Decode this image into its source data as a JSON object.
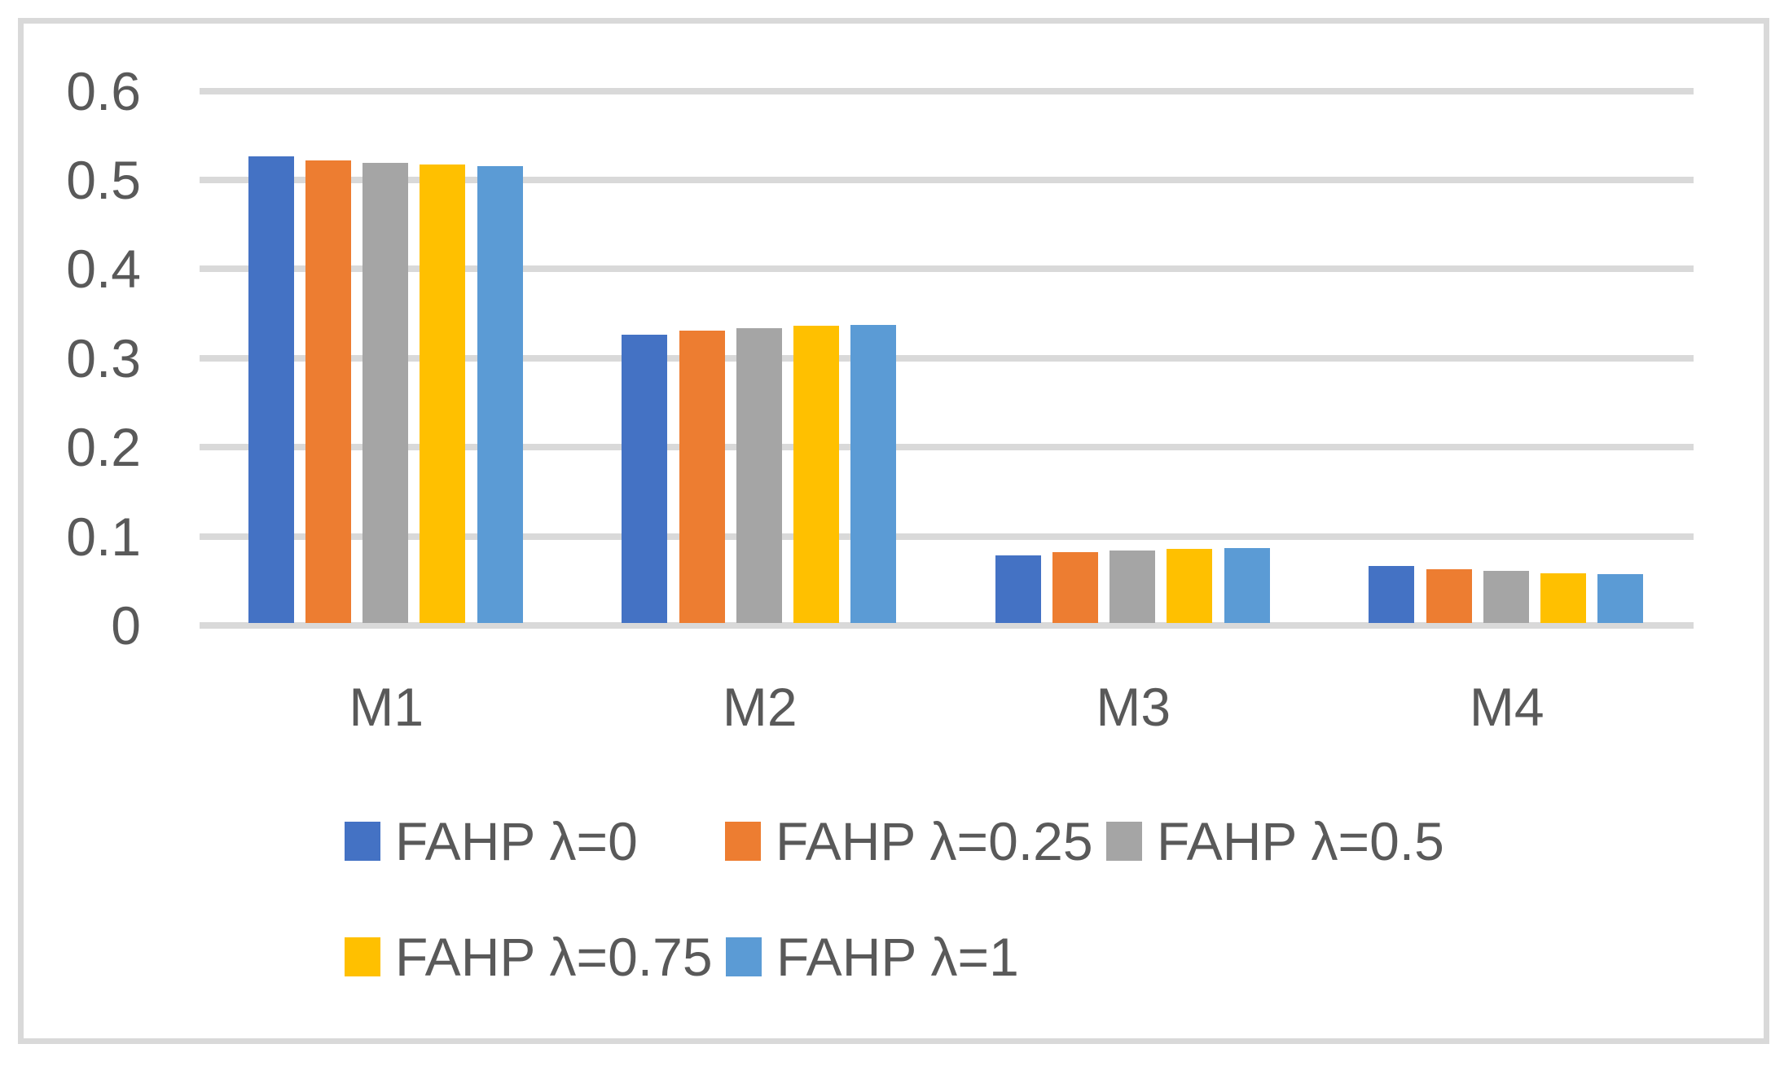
{
  "chart_data": {
    "type": "bar",
    "title": "",
    "categories": [
      "M1",
      "M2",
      "M3",
      "M4"
    ],
    "series": [
      {
        "name": "FAHP λ=0",
        "color": "#4472C4",
        "values": [
          0.527,
          0.326,
          0.079,
          0.067
        ]
      },
      {
        "name": "FAHP λ=0.25",
        "color": "#ED7D31",
        "values": [
          0.522,
          0.331,
          0.082,
          0.063
        ]
      },
      {
        "name": "FAHP λ=0.5",
        "color": "#A5A5A5",
        "values": [
          0.519,
          0.334,
          0.084,
          0.061
        ]
      },
      {
        "name": "FAHP λ=0.75",
        "color": "#FFC000",
        "values": [
          0.517,
          0.336,
          0.086,
          0.059
        ]
      },
      {
        "name": "FAHP λ=1",
        "color": "#5B9BD5",
        "values": [
          0.516,
          0.337,
          0.087,
          0.058
        ]
      }
    ],
    "xlabel": "",
    "ylabel": "",
    "ylim": [
      0,
      0.6
    ],
    "ytick_labels": [
      "0",
      "0.1",
      "0.2",
      "0.3",
      "0.4",
      "0.5",
      "0.6"
    ],
    "ytick_values": [
      0,
      0.1,
      0.2,
      0.3,
      0.4,
      0.5,
      0.6
    ],
    "grid": true,
    "legend_position": "bottom",
    "legend_rows": [
      [
        0,
        1,
        2
      ],
      [
        3,
        4
      ]
    ]
  },
  "styles": {
    "grid_color": "#D9D9D9",
    "frame_color": "#D9D9D9",
    "text_color": "#595959",
    "background": "#FFFFFF"
  }
}
